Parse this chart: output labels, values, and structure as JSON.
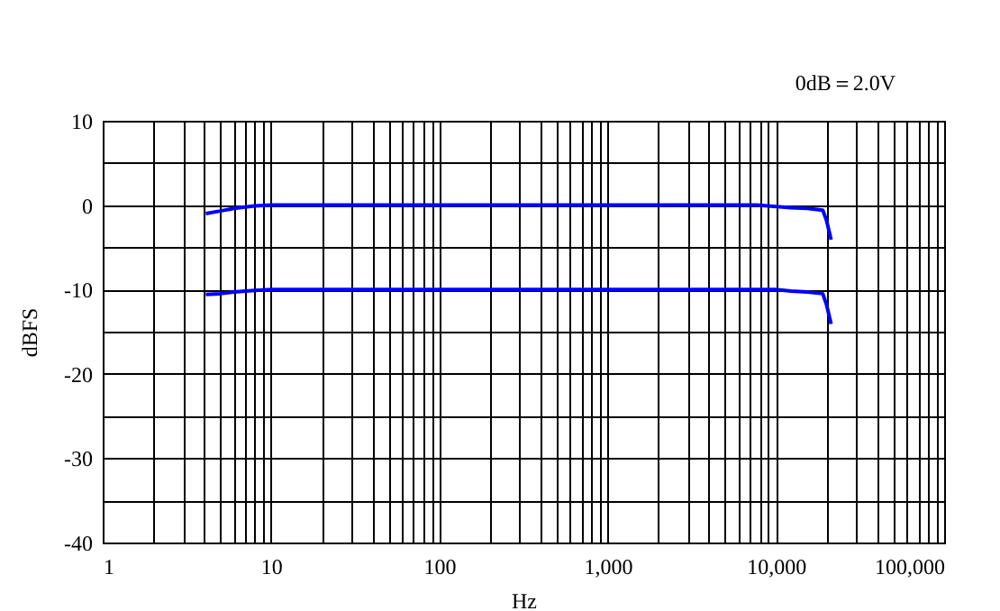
{
  "chart_data": {
    "type": "line",
    "annotations": [
      "0dB＝2.0V"
    ],
    "xlabel": "Hz",
    "ylabel": "dBFS",
    "log": "x",
    "grid": true,
    "legend": false,
    "marker": "none",
    "line_style": "solid",
    "xlim": [
      1,
      100000
    ],
    "ylim": [
      -40,
      10
    ],
    "xticks": [
      {
        "value": 1,
        "label": "1"
      },
      {
        "value": 2,
        "label": null
      },
      {
        "value": 3,
        "label": null
      },
      {
        "value": 4,
        "label": null
      },
      {
        "value": 5,
        "label": null
      },
      {
        "value": 6,
        "label": null
      },
      {
        "value": 7,
        "label": null
      },
      {
        "value": 8,
        "label": null
      },
      {
        "value": 9,
        "label": null
      },
      {
        "value": 10,
        "label": "10"
      },
      {
        "value": 20,
        "label": null
      },
      {
        "value": 30,
        "label": null
      },
      {
        "value": 40,
        "label": null
      },
      {
        "value": 50,
        "label": null
      },
      {
        "value": 60,
        "label": null
      },
      {
        "value": 70,
        "label": null
      },
      {
        "value": 80,
        "label": null
      },
      {
        "value": 90,
        "label": null
      },
      {
        "value": 100,
        "label": "100"
      },
      {
        "value": 200,
        "label": null
      },
      {
        "value": 300,
        "label": null
      },
      {
        "value": 400,
        "label": null
      },
      {
        "value": 500,
        "label": null
      },
      {
        "value": 600,
        "label": null
      },
      {
        "value": 700,
        "label": null
      },
      {
        "value": 800,
        "label": null
      },
      {
        "value": 900,
        "label": null
      },
      {
        "value": 1000,
        "label": "1,000"
      },
      {
        "value": 2000,
        "label": null
      },
      {
        "value": 3000,
        "label": null
      },
      {
        "value": 4000,
        "label": null
      },
      {
        "value": 5000,
        "label": null
      },
      {
        "value": 6000,
        "label": null
      },
      {
        "value": 7000,
        "label": null
      },
      {
        "value": 8000,
        "label": null
      },
      {
        "value": 9000,
        "label": null
      },
      {
        "value": 10000,
        "label": "10,000"
      },
      {
        "value": 20000,
        "label": null
      },
      {
        "value": 30000,
        "label": null
      },
      {
        "value": 40000,
        "label": null
      },
      {
        "value": 50000,
        "label": null
      },
      {
        "value": 60000,
        "label": null
      },
      {
        "value": 70000,
        "label": null
      },
      {
        "value": 80000,
        "label": null
      },
      {
        "value": 90000,
        "label": null
      },
      {
        "value": 100000,
        "label": "100,000"
      }
    ],
    "yticks": [
      -40,
      {
        "value": -35,
        "label": null
      },
      -30,
      {
        "value": -25,
        "label": null
      },
      -20,
      {
        "value": -15,
        "label": null
      },
      -10,
      {
        "value": -5,
        "label": null
      },
      0,
      {
        "value": 5,
        "label": null
      },
      10
    ],
    "series": [
      {
        "color": "#0000ff",
        "x": [
          4.1,
          5,
          6,
          8,
          10,
          100,
          1000,
          7700,
          9000,
          12300,
          15400,
          19000,
          20000,
          21300
        ],
        "values": [
          -1,
          -0.7,
          -0.4,
          -0.1,
          0,
          0,
          0,
          0,
          -0.1,
          -0.3,
          -0.4,
          -0.6,
          -1.8,
          -4.1
        ]
      },
      {
        "color": "#0000ff",
        "x": [
          4.1,
          5,
          6,
          8,
          10,
          100,
          1000,
          7700,
          10000,
          12300,
          15400,
          19000,
          20000,
          21300
        ],
        "values": [
          -10.6,
          -10.5,
          -10.3,
          -10.1,
          -10,
          -10,
          -10,
          -10,
          -10,
          -10.2,
          -10.3,
          -10.5,
          -11.8,
          -14.1
        ]
      }
    ]
  }
}
